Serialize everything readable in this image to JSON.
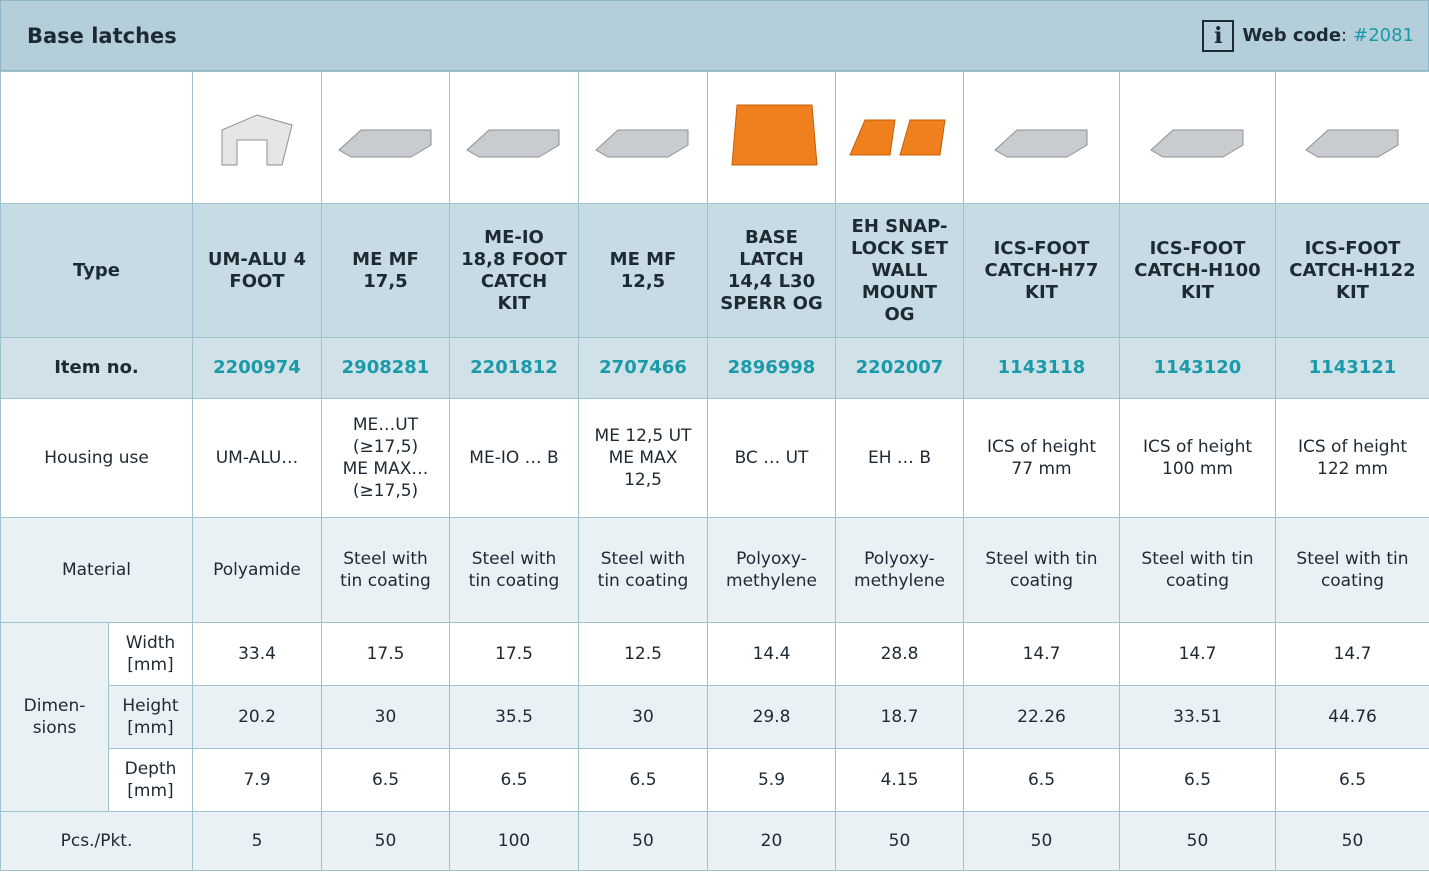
{
  "header": {
    "title": "Base latches",
    "info_icon": "i",
    "web_code_label": "Web code",
    "web_code_separator": ":",
    "web_code": "#2081"
  },
  "table": {
    "row_labels": {
      "type": "Type",
      "item_no": "Item no.",
      "housing_use": "Housing use",
      "material": "Material",
      "dimensions": "Dimen-\nsions",
      "width": "Width\n[mm]",
      "height": "Height\n[mm]",
      "depth": "Depth\n[mm]",
      "pcs": "Pcs./Pkt."
    },
    "products": [
      {
        "type": "UM-ALU 4\nFOOT",
        "item_no": "2200974",
        "housing_use": "UM-ALU…",
        "material": "Polyamide",
        "width": 33.4,
        "height": 20.2,
        "depth": 7.9,
        "pcs": 5
      },
      {
        "type": "ME MF\n17,5",
        "item_no": "2908281",
        "housing_use": "ME…UT\n(≥17,5)\nME MAX…\n(≥17,5)",
        "material": "Steel with\ntin coating",
        "width": 17.5,
        "height": 30,
        "depth": 6.5,
        "pcs": 50
      },
      {
        "type": "ME-IO\n18,8 FOOT\nCATCH\nKIT",
        "item_no": "2201812",
        "housing_use": "ME-IO … B",
        "material": "Steel with\ntin coating",
        "width": 17.5,
        "height": 35.5,
        "depth": 6.5,
        "pcs": 100
      },
      {
        "type": "ME MF\n12,5",
        "item_no": "2707466",
        "housing_use": "ME 12,5 UT\nME MAX\n12,5",
        "material": "Steel with\ntin coating",
        "width": 12.5,
        "height": 30,
        "depth": 6.5,
        "pcs": 50
      },
      {
        "type": "BASE\nLATCH\n14,4 L30\nSPERR OG",
        "item_no": "2896998",
        "housing_use": "BC … UT",
        "material": "Polyoxy-\nmethylene",
        "width": 14.4,
        "height": 29.8,
        "depth": 5.9,
        "pcs": 20
      },
      {
        "type": "EH SNAP-\nLOCK SET\nWALL\nMOUNT\nOG",
        "item_no": "2202007",
        "housing_use": "EH … B",
        "material": "Polyoxy-\nmethylene",
        "width": 28.8,
        "height": 18.7,
        "depth": 4.15,
        "pcs": 50
      },
      {
        "type": "ICS-FOOT\nCATCH-H77\nKIT",
        "item_no": "1143118",
        "housing_use": "ICS of height\n77 mm",
        "material": "Steel with tin\ncoating",
        "width": 14.7,
        "height": 22.26,
        "depth": 6.5,
        "pcs": 50
      },
      {
        "type": "ICS-FOOT\nCATCH-H100\nKIT",
        "item_no": "1143120",
        "housing_use": "ICS of height\n100 mm",
        "material": "Steel with tin\ncoating",
        "width": 14.7,
        "height": 33.51,
        "depth": 6.5,
        "pcs": 50
      },
      {
        "type": "ICS-FOOT\nCATCH-H122\nKIT",
        "item_no": "1143121",
        "housing_use": "ICS of height\n122 mm",
        "material": "Steel with tin\ncoating",
        "width": 14.7,
        "height": 44.76,
        "depth": 6.5,
        "pcs": 50
      }
    ]
  }
}
